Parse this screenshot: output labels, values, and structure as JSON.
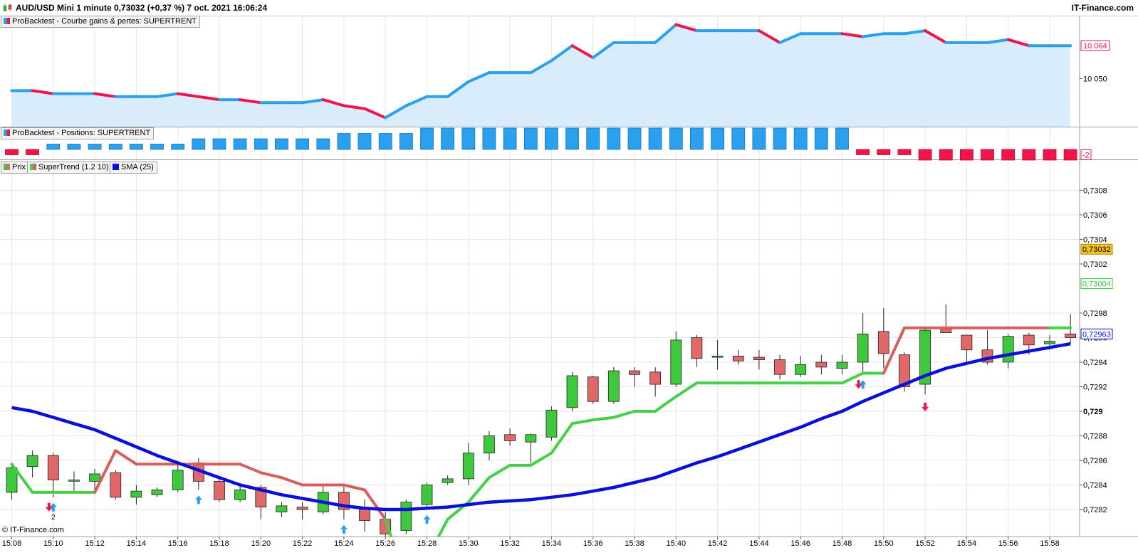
{
  "header": {
    "title": "AUD/USD Mini 1 minute 0,73032 (+0,37 %) 7 oct. 2021 16:06:24",
    "brand": "IT-Finance.com"
  },
  "legends": {
    "equity": "ProBacktest - Courbe gains & pertes: SUPERTRENT",
    "positions": "ProBacktest - Positions: SUPERTRENT",
    "price": "Prix",
    "supertrend": "SuperTrend (1.2 10)",
    "sma": "SMA (25)"
  },
  "footer": {
    "copyright": "© IT-Finance.com"
  },
  "colors": {
    "up": "#3ec83e",
    "down": "#e06868",
    "equity_up": "#2aa0ee",
    "equity_down": "#f0164a",
    "sma": "#0a10d8",
    "st_up": "#46d046",
    "st_down": "#d85e5e",
    "area": "#d8ecfc"
  },
  "chart_data": [
    {
      "type": "area",
      "title": "ProBacktest - Courbe gains & pertes: SUPERTRENT",
      "y_ticks": [
        "10 050"
      ],
      "last_value_label": "10 064",
      "x": [
        "15:08",
        "15:09",
        "15:10",
        "15:11",
        "15:12",
        "15:13",
        "15:14",
        "15:15",
        "15:16",
        "15:17",
        "15:18",
        "15:19",
        "15:20",
        "15:21",
        "15:22",
        "15:23",
        "15:24",
        "15:25",
        "15:26",
        "15:27",
        "15:28",
        "15:29",
        "15:30",
        "15:31",
        "15:32",
        "15:33",
        "15:34",
        "15:35",
        "15:36",
        "15:37",
        "15:38",
        "15:39",
        "15:40",
        "15:41",
        "15:42",
        "15:43",
        "15:44",
        "15:45",
        "15:46",
        "15:47",
        "15:48",
        "15:49",
        "15:50",
        "15:51",
        "15:52",
        "15:53",
        "15:54",
        "15:55",
        "15:56",
        "15:57",
        "15:58",
        "15:59"
      ],
      "values": [
        10046,
        10046,
        10045,
        10045,
        10045,
        10044,
        10044,
        10044,
        10045,
        10044,
        10043,
        10043,
        10042,
        10042,
        10042,
        10043,
        10041,
        10040,
        10037,
        10041,
        10044,
        10044,
        10049,
        10052,
        10052,
        10052,
        10056,
        10061,
        10057,
        10062,
        10062,
        10062,
        10068,
        10066,
        10066,
        10066,
        10066,
        10062,
        10065,
        10065,
        10065,
        10064,
        10065,
        10065,
        10066,
        10062,
        10062,
        10062,
        10063,
        10061,
        10061,
        10061
      ]
    },
    {
      "type": "bar",
      "title": "ProBacktest - Positions: SUPERTRENT",
      "last_value_label": "-2",
      "x": [
        "15:08",
        "15:09",
        "15:10",
        "15:11",
        "15:12",
        "15:13",
        "15:14",
        "15:15",
        "15:16",
        "15:17",
        "15:18",
        "15:19",
        "15:20",
        "15:21",
        "15:22",
        "15:23",
        "15:24",
        "15:25",
        "15:26",
        "15:27",
        "15:28",
        "15:29",
        "15:30",
        "15:31",
        "15:32",
        "15:33",
        "15:34",
        "15:35",
        "15:36",
        "15:37",
        "15:38",
        "15:39",
        "15:40",
        "15:41",
        "15:42",
        "15:43",
        "15:44",
        "15:45",
        "15:46",
        "15:47",
        "15:48",
        "15:49",
        "15:50",
        "15:51",
        "15:52",
        "15:53",
        "15:54",
        "15:55",
        "15:56",
        "15:57",
        "15:58",
        "15:59"
      ],
      "values": [
        -1,
        -1,
        1,
        1,
        1,
        1,
        1,
        1,
        1,
        2,
        2,
        2,
        2,
        2,
        2,
        2,
        3,
        3,
        3,
        3,
        4,
        4,
        4,
        4,
        4,
        4,
        4,
        4,
        4,
        4,
        4,
        4,
        4,
        4,
        4,
        4,
        4,
        4,
        4,
        4,
        4,
        -1,
        -1,
        -1,
        -2,
        -2,
        -2,
        -2,
        -2,
        -2,
        -2,
        -2
      ]
    },
    {
      "type": "candlestick",
      "title": "AUD/USD Mini 1 minute",
      "y_ticks": [
        "0,7282",
        "0,7284",
        "0,7286",
        "0,7288",
        "0,729",
        "0,7292",
        "0,7294",
        "0,7296",
        "0,7298",
        "0,7302",
        "0,7304",
        "0,7306",
        "0,7308"
      ],
      "x_ticks": [
        "15:08",
        "15:10",
        "15:12",
        "15:14",
        "15:16",
        "15:18",
        "15:20",
        "15:22",
        "15:24",
        "15:26",
        "15:28",
        "15:30",
        "15:32",
        "15:34",
        "15:36",
        "15:38",
        "15:40",
        "15:42",
        "15:44",
        "15:46",
        "15:48",
        "15:50",
        "15:52",
        "15:54",
        "15:56",
        "15:58"
      ],
      "price_labels": {
        "last": "0,73032",
        "supertrend": "0,73004",
        "sma": "0,72963"
      },
      "candles": [
        {
          "t": "15:08",
          "o": 0.72834,
          "h": 0.72858,
          "l": 0.72828,
          "c": 0.72854
        },
        {
          "t": "15:09",
          "o": 0.72855,
          "h": 0.72868,
          "l": 0.72846,
          "c": 0.72864
        },
        {
          "t": "15:10",
          "o": 0.72864,
          "h": 0.72866,
          "l": 0.7283,
          "c": 0.72844
        },
        {
          "t": "15:11",
          "o": 0.72843,
          "h": 0.72851,
          "l": 0.72834,
          "c": 0.72844
        },
        {
          "t": "15:12",
          "o": 0.72843,
          "h": 0.72853,
          "l": 0.72835,
          "c": 0.72849
        },
        {
          "t": "15:13",
          "o": 0.7285,
          "h": 0.72852,
          "l": 0.72828,
          "c": 0.7283
        },
        {
          "t": "15:14",
          "o": 0.7283,
          "h": 0.7284,
          "l": 0.72824,
          "c": 0.72835
        },
        {
          "t": "15:15",
          "o": 0.72832,
          "h": 0.72838,
          "l": 0.7283,
          "c": 0.72836
        },
        {
          "t": "15:16",
          "o": 0.72836,
          "h": 0.72856,
          "l": 0.72834,
          "c": 0.72852
        },
        {
          "t": "15:17",
          "o": 0.72858,
          "h": 0.72862,
          "l": 0.72836,
          "c": 0.72843
        },
        {
          "t": "15:18",
          "o": 0.72843,
          "h": 0.72846,
          "l": 0.72826,
          "c": 0.72828
        },
        {
          "t": "15:19",
          "o": 0.72828,
          "h": 0.7284,
          "l": 0.72826,
          "c": 0.72836
        },
        {
          "t": "15:20",
          "o": 0.72838,
          "h": 0.7284,
          "l": 0.72812,
          "c": 0.72822
        },
        {
          "t": "15:21",
          "o": 0.72818,
          "h": 0.72826,
          "l": 0.72814,
          "c": 0.72823
        },
        {
          "t": "15:22",
          "o": 0.72822,
          "h": 0.72826,
          "l": 0.72812,
          "c": 0.7282
        },
        {
          "t": "15:23",
          "o": 0.72818,
          "h": 0.7284,
          "l": 0.72816,
          "c": 0.72834
        },
        {
          "t": "15:24",
          "o": 0.72834,
          "h": 0.7284,
          "l": 0.72812,
          "c": 0.7282
        },
        {
          "t": "15:25",
          "o": 0.7282,
          "h": 0.72828,
          "l": 0.72802,
          "c": 0.72811
        },
        {
          "t": "15:26",
          "o": 0.72812,
          "h": 0.72818,
          "l": 0.72795,
          "c": 0.728
        },
        {
          "t": "15:27",
          "o": 0.72803,
          "h": 0.72828,
          "l": 0.728,
          "c": 0.72826
        },
        {
          "t": "15:28",
          "o": 0.72824,
          "h": 0.72842,
          "l": 0.7282,
          "c": 0.7284
        },
        {
          "t": "15:29",
          "o": 0.72842,
          "h": 0.72848,
          "l": 0.7284,
          "c": 0.72845
        },
        {
          "t": "15:30",
          "o": 0.72845,
          "h": 0.72874,
          "l": 0.7284,
          "c": 0.72866
        },
        {
          "t": "15:31",
          "o": 0.72866,
          "h": 0.72884,
          "l": 0.7286,
          "c": 0.7288
        },
        {
          "t": "15:32",
          "o": 0.72881,
          "h": 0.72886,
          "l": 0.72872,
          "c": 0.72876
        },
        {
          "t": "15:33",
          "o": 0.72875,
          "h": 0.72882,
          "l": 0.72858,
          "c": 0.72881
        },
        {
          "t": "15:34",
          "o": 0.72879,
          "h": 0.72904,
          "l": 0.72876,
          "c": 0.72901
        },
        {
          "t": "15:35",
          "o": 0.72903,
          "h": 0.72932,
          "l": 0.729,
          "c": 0.72929
        },
        {
          "t": "15:36",
          "o": 0.72928,
          "h": 0.72929,
          "l": 0.72906,
          "c": 0.72908
        },
        {
          "t": "15:37",
          "o": 0.72908,
          "h": 0.72936,
          "l": 0.72906,
          "c": 0.72933
        },
        {
          "t": "15:38",
          "o": 0.72933,
          "h": 0.72936,
          "l": 0.7292,
          "c": 0.7293
        },
        {
          "t": "15:39",
          "o": 0.72932,
          "h": 0.72936,
          "l": 0.72912,
          "c": 0.72922
        },
        {
          "t": "15:40",
          "o": 0.72922,
          "h": 0.72965,
          "l": 0.7292,
          "c": 0.72958
        },
        {
          "t": "15:41",
          "o": 0.7296,
          "h": 0.72962,
          "l": 0.72936,
          "c": 0.72943
        },
        {
          "t": "15:42",
          "o": 0.72944,
          "h": 0.72958,
          "l": 0.72934,
          "c": 0.72945
        },
        {
          "t": "15:43",
          "o": 0.72945,
          "h": 0.7295,
          "l": 0.72938,
          "c": 0.72941
        },
        {
          "t": "15:44",
          "o": 0.72944,
          "h": 0.7295,
          "l": 0.72934,
          "c": 0.72942
        },
        {
          "t": "15:45",
          "o": 0.72942,
          "h": 0.72946,
          "l": 0.72926,
          "c": 0.7293
        },
        {
          "t": "15:46",
          "o": 0.7293,
          "h": 0.72945,
          "l": 0.72928,
          "c": 0.72938
        },
        {
          "t": "15:47",
          "o": 0.7294,
          "h": 0.72946,
          "l": 0.7293,
          "c": 0.72936
        },
        {
          "t": "15:48",
          "o": 0.72935,
          "h": 0.72946,
          "l": 0.7293,
          "c": 0.7294
        },
        {
          "t": "15:49",
          "o": 0.7294,
          "h": 0.7298,
          "l": 0.7293,
          "c": 0.72963
        },
        {
          "t": "15:50",
          "o": 0.72965,
          "h": 0.72984,
          "l": 0.72935,
          "c": 0.72947
        },
        {
          "t": "15:51",
          "o": 0.72946,
          "h": 0.72948,
          "l": 0.72916,
          "c": 0.7292
        },
        {
          "t": "15:52",
          "o": 0.72922,
          "h": 0.72968,
          "l": 0.72914,
          "c": 0.72966
        },
        {
          "t": "15:53",
          "o": 0.72967,
          "h": 0.72987,
          "l": 0.72964,
          "c": 0.72964
        },
        {
          "t": "15:54",
          "o": 0.72962,
          "h": 0.72962,
          "l": 0.72938,
          "c": 0.7295
        },
        {
          "t": "15:55",
          "o": 0.7295,
          "h": 0.72966,
          "l": 0.72938,
          "c": 0.7294
        },
        {
          "t": "15:56",
          "o": 0.7294,
          "h": 0.72963,
          "l": 0.72935,
          "c": 0.72961
        },
        {
          "t": "15:57",
          "o": 0.72962,
          "h": 0.72964,
          "l": 0.72946,
          "c": 0.72954
        },
        {
          "t": "15:58",
          "o": 0.72955,
          "h": 0.72962,
          "l": 0.7295,
          "c": 0.72957
        },
        {
          "t": "15:59",
          "o": 0.72963,
          "h": 0.72979,
          "l": 0.72955,
          "c": 0.7296
        }
      ],
      "supertrend": [
        0.72857,
        0.72834,
        0.72834,
        0.72834,
        0.72834,
        0.72868,
        0.72857,
        0.72857,
        0.72857,
        0.72857,
        0.72857,
        0.72857,
        0.7285,
        0.72846,
        0.7284,
        0.7284,
        0.7284,
        0.72836,
        0.72812,
        0.7276,
        0.7278,
        0.72812,
        0.72826,
        0.72846,
        0.72856,
        0.72856,
        0.72866,
        0.7289,
        0.72893,
        0.72895,
        0.729,
        0.729,
        0.72912,
        0.72923,
        0.72923,
        0.72923,
        0.72923,
        0.72923,
        0.72923,
        0.72923,
        0.72923,
        0.72931,
        0.72931,
        0.72968,
        0.72968,
        0.72968,
        0.72968,
        0.72968,
        0.72968,
        0.72968,
        0.72968,
        0.72968
      ],
      "supertrend_trend": [
        "up",
        "up",
        "up",
        "up",
        "up",
        "down",
        "down",
        "down",
        "down",
        "down",
        "down",
        "down",
        "down",
        "down",
        "down",
        "down",
        "down",
        "down",
        "down",
        "up",
        "up",
        "up",
        "up",
        "up",
        "up",
        "up",
        "up",
        "up",
        "up",
        "up",
        "up",
        "up",
        "up",
        "up",
        "up",
        "up",
        "up",
        "up",
        "up",
        "up",
        "up",
        "up",
        "up",
        "down",
        "down",
        "down",
        "down",
        "down",
        "down",
        "down",
        "down",
        "up"
      ],
      "sma": [
        0.72903,
        0.729,
        0.72895,
        0.7289,
        0.72885,
        0.72878,
        0.72871,
        0.72864,
        0.72858,
        0.72852,
        0.72846,
        0.7284,
        0.72836,
        0.72832,
        0.72829,
        0.72826,
        0.72823,
        0.72821,
        0.7282,
        0.7282,
        0.72821,
        0.72822,
        0.72824,
        0.72826,
        0.72827,
        0.72828,
        0.7283,
        0.72832,
        0.72835,
        0.72838,
        0.72842,
        0.72846,
        0.72852,
        0.72858,
        0.72863,
        0.72869,
        0.72875,
        0.72881,
        0.72887,
        0.72894,
        0.729,
        0.72908,
        0.72915,
        0.72922,
        0.72929,
        0.72935,
        0.72939,
        0.72943,
        0.72946,
        0.72949,
        0.72952,
        0.72955
      ],
      "markers": [
        {
          "t": "15:10",
          "type": "buy-sell",
          "label": "2"
        },
        {
          "t": "15:17",
          "type": "buy"
        },
        {
          "t": "15:24",
          "type": "buy"
        },
        {
          "t": "15:28",
          "type": "buy"
        },
        {
          "t": "15:49",
          "type": "buy-sell"
        },
        {
          "t": "15:52",
          "type": "sell"
        }
      ]
    }
  ]
}
